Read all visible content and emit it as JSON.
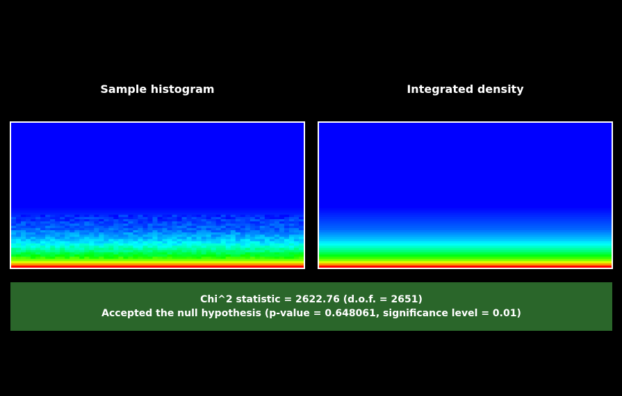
{
  "chart_data": [
    {
      "type": "heatmap",
      "title": "Sample histogram",
      "colormap": [
        "#0000ff",
        "#00ffff",
        "#00ff00",
        "#ffff00",
        "#ff0000"
      ],
      "frame_color": "#ffffff",
      "row_profile": [
        0.0,
        0.01,
        0.02,
        0.03,
        0.04,
        0.05,
        0.06,
        0.07,
        0.08,
        0.09,
        0.1,
        0.12,
        0.14,
        0.16,
        0.18,
        0.2,
        0.23,
        0.26,
        0.3,
        0.34,
        0.38,
        0.43,
        0.48,
        0.55,
        0.62,
        0.72,
        0.85,
        1.0
      ],
      "noise": true
    },
    {
      "type": "heatmap",
      "title": "Integrated density",
      "colormap": [
        "#0000ff",
        "#00ffff",
        "#00ff00",
        "#ffff00",
        "#ff0000"
      ],
      "frame_color": "#ffffff",
      "row_profile": [
        0.0,
        0.01,
        0.02,
        0.03,
        0.04,
        0.05,
        0.06,
        0.07,
        0.08,
        0.09,
        0.1,
        0.12,
        0.14,
        0.16,
        0.18,
        0.2,
        0.23,
        0.26,
        0.3,
        0.34,
        0.38,
        0.43,
        0.48,
        0.55,
        0.62,
        0.72,
        0.85,
        1.0
      ],
      "noise": false
    }
  ],
  "result": {
    "line1": "Chi^2 statistic = 2622.76 (d.o.f. = 2651)",
    "line2": "Accepted the null hypothesis (p-value = 0.648061, significance level = 0.01)",
    "background": "#2a662a"
  }
}
